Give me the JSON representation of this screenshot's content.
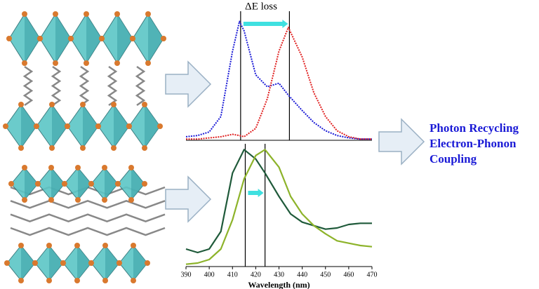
{
  "annotation": "ΔE loss",
  "side_text": [
    "Photon Recycling",
    "Electron-Phonon",
    "Coupling"
  ],
  "chart_data": [
    {
      "type": "line",
      "xlim": [
        390,
        470
      ],
      "ylim": [
        0,
        1.05
      ],
      "vlines": [
        413.5,
        434.5
      ],
      "x": [
        390,
        395,
        400,
        405,
        410,
        413,
        415,
        420,
        425,
        430,
        434,
        440,
        445,
        450,
        455,
        460,
        465,
        470
      ],
      "series": [
        {
          "color": "#1a1ad6",
          "values": [
            0.03,
            0.04,
            0.07,
            0.2,
            0.75,
            1.0,
            0.92,
            0.55,
            0.45,
            0.48,
            0.38,
            0.25,
            0.15,
            0.08,
            0.04,
            0.02,
            0.01,
            0.01
          ]
        },
        {
          "color": "#e02020",
          "values": [
            0.01,
            0.01,
            0.02,
            0.03,
            0.05,
            0.04,
            0.03,
            0.1,
            0.35,
            0.75,
            0.95,
            0.7,
            0.4,
            0.2,
            0.08,
            0.03,
            0.01,
            0.01
          ]
        }
      ]
    },
    {
      "type": "line",
      "xlim": [
        390,
        470
      ],
      "ylim": [
        0,
        1.05
      ],
      "vlines": [
        415.5,
        424
      ],
      "xticks": [
        390,
        400,
        410,
        420,
        430,
        440,
        450,
        460,
        470
      ],
      "xlabel": "Wavelength (nm)",
      "x": [
        390,
        395,
        400,
        405,
        410,
        415,
        420,
        424,
        430,
        435,
        440,
        445,
        450,
        455,
        460,
        465,
        470
      ],
      "series": [
        {
          "color": "#1f5a3a",
          "values": [
            0.15,
            0.12,
            0.15,
            0.3,
            0.8,
            1.0,
            0.92,
            0.8,
            0.6,
            0.45,
            0.38,
            0.35,
            0.32,
            0.33,
            0.36,
            0.37,
            0.37
          ]
        },
        {
          "color": "#8db32a",
          "values": [
            0.02,
            0.03,
            0.06,
            0.15,
            0.4,
            0.75,
            0.95,
            1.0,
            0.85,
            0.6,
            0.45,
            0.35,
            0.28,
            0.22,
            0.2,
            0.18,
            0.17
          ]
        }
      ]
    }
  ]
}
